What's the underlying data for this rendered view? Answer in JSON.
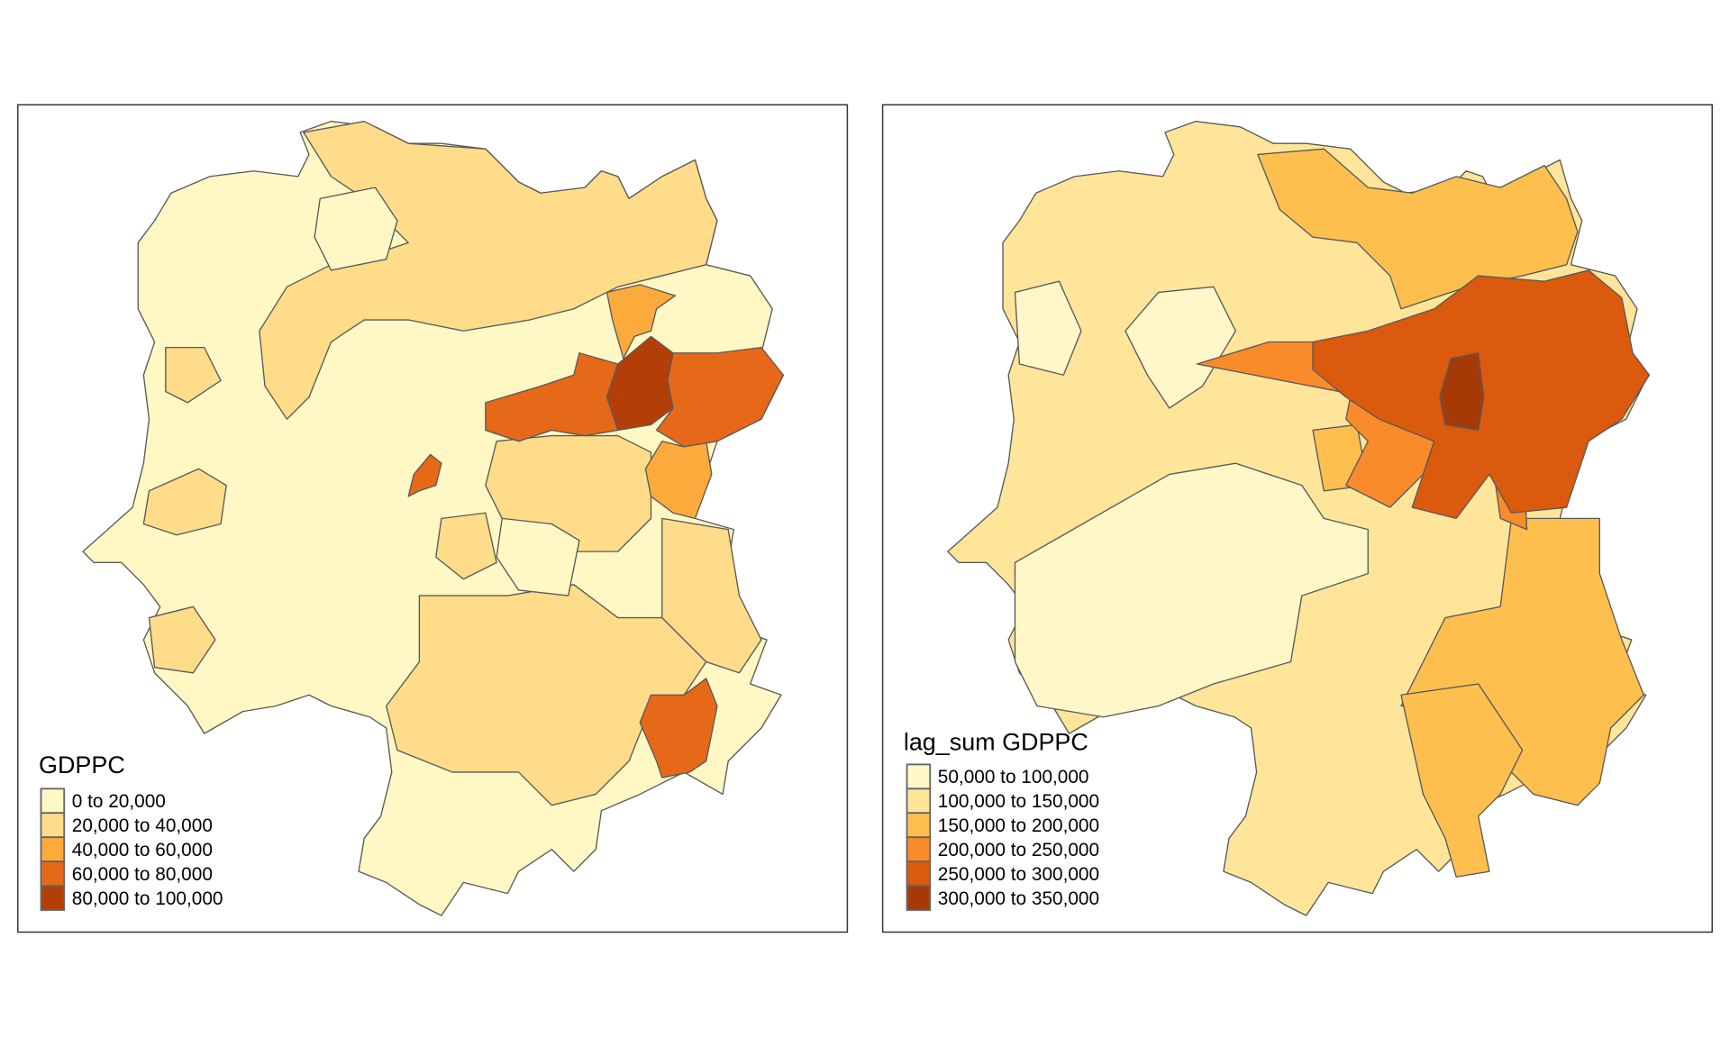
{
  "maps": [
    {
      "legend_title": "GDPPC",
      "classes": [
        {
          "label": "0 to 20,000",
          "color": "#FFF7C4"
        },
        {
          "label": "20,000 to 40,000",
          "color": "#FEDC8A"
        },
        {
          "label": "40,000 to 60,000",
          "color": "#FDAA3D"
        },
        {
          "label": "60,000 to 80,000",
          "color": "#E6691A"
        },
        {
          "label": "80,000 to 100,000",
          "color": "#B43F06"
        }
      ]
    },
    {
      "legend_title": "lag_sum GDPPC",
      "classes": [
        {
          "label": "50,000 to 100,000",
          "color": "#FFF7C8"
        },
        {
          "label": "100,000 to 150,000",
          "color": "#FEE59A"
        },
        {
          "label": "150,000 to 200,000",
          "color": "#FEBF4F"
        },
        {
          "label": "200,000 to 250,000",
          "color": "#F98B2A"
        },
        {
          "label": "250,000 to 300,000",
          "color": "#DB5A0D"
        },
        {
          "label": "300,000 to 350,000",
          "color": "#A63A06"
        }
      ]
    }
  ]
}
